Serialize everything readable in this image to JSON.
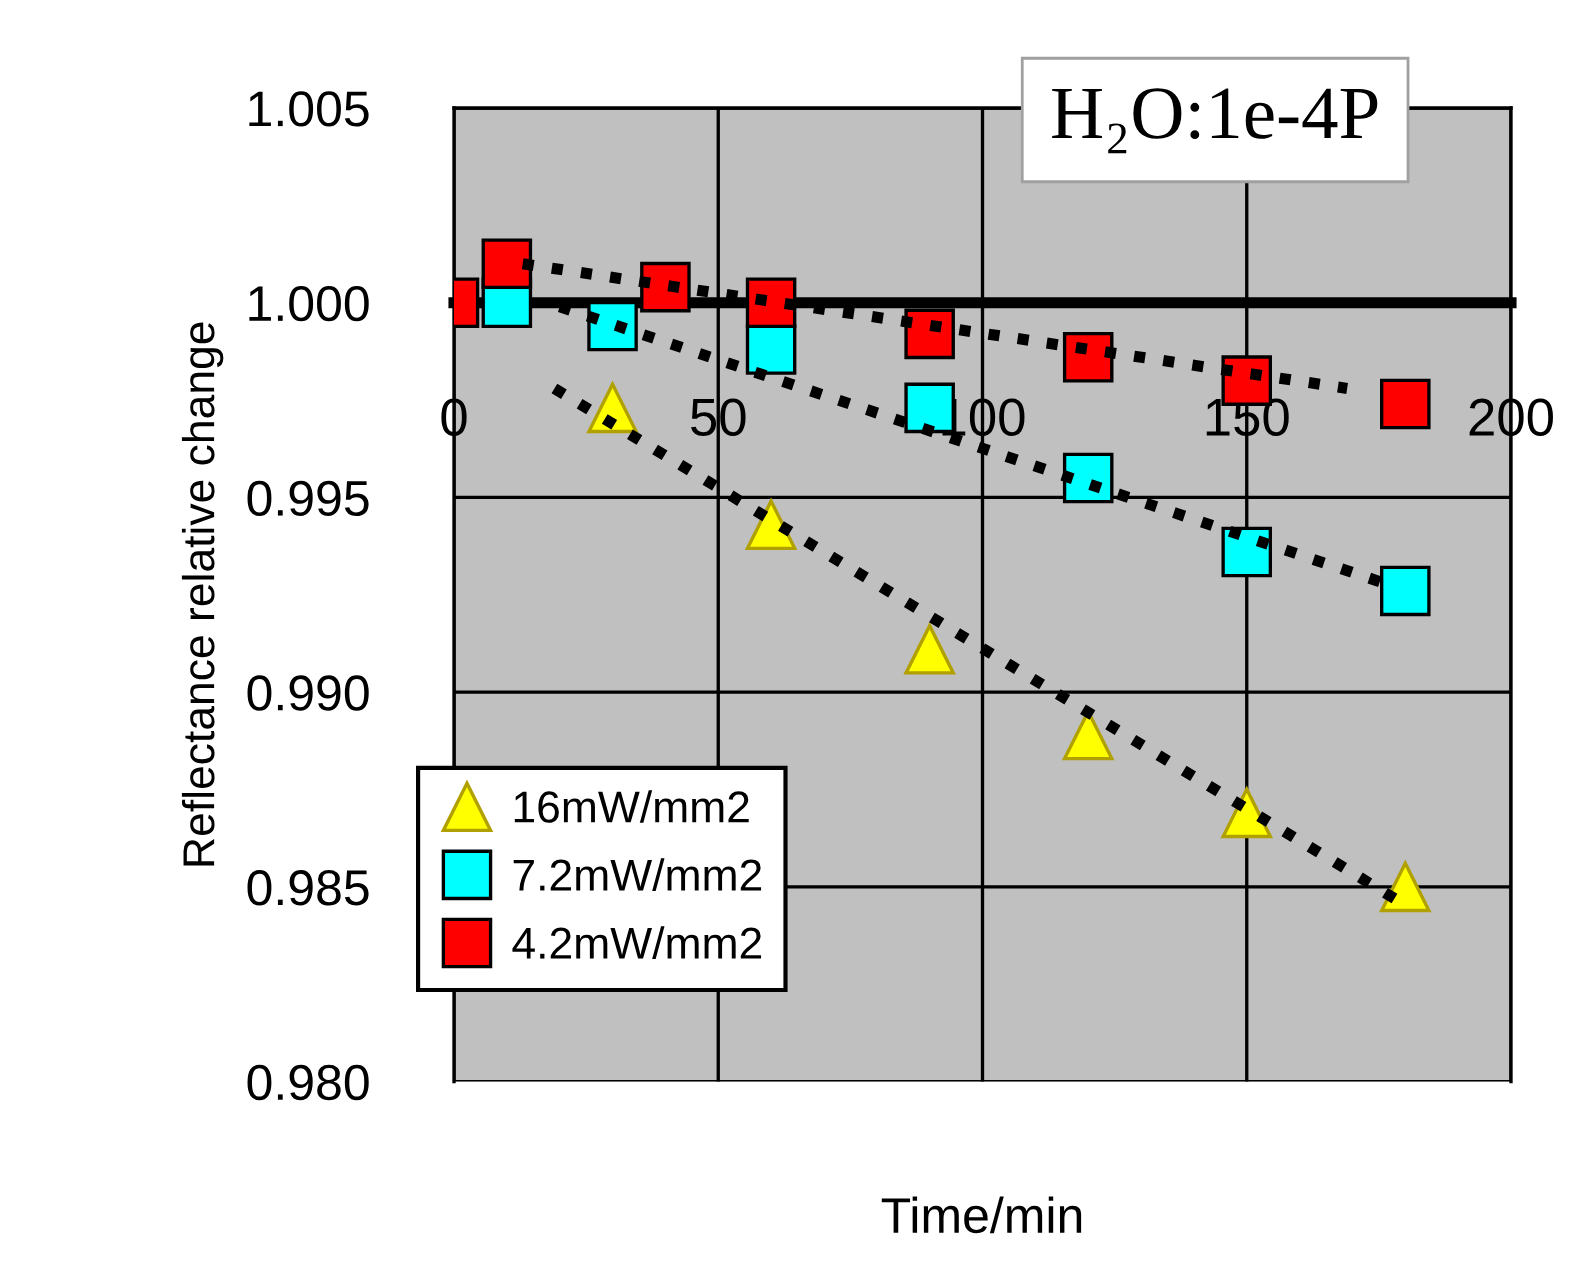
{
  "chart_data": {
    "type": "scatter",
    "xlabel": "Time/min",
    "ylabel": "Reflectance relative change",
    "annotations": [
      "H₂O:1e-4P"
    ],
    "xlim": [
      0,
      200
    ],
    "xticks": [
      0,
      50,
      100,
      150,
      200
    ],
    "ylim": [
      0.98,
      1.005
    ],
    "yticks": [
      {
        "value": 0.98,
        "label": "0.980"
      },
      {
        "value": 0.985,
        "label": "0.985"
      },
      {
        "value": 0.99,
        "label": "0.990"
      },
      {
        "value": 0.995,
        "label": "0.995"
      },
      {
        "value": 1.0,
        "label": "1.000"
      },
      {
        "value": 1.005,
        "label": "1.005"
      }
    ],
    "grid": true,
    "legend": "bottom left",
    "series": [
      {
        "name": "16mW/mm2",
        "color": "#ffff00",
        "marker": "triangle",
        "x": [
          30,
          60,
          90,
          120,
          150,
          180
        ],
        "values": [
          0.9973,
          0.9943,
          0.9911,
          0.9889,
          0.9869,
          0.985
        ]
      },
      {
        "name": "7.2mW/mm2",
        "color": "#00ffff",
        "marker": "square",
        "x": [
          10,
          30,
          60,
          90,
          120,
          150,
          180
        ],
        "values": [
          1.0,
          0.9994,
          0.9988,
          0.9973,
          0.9955,
          0.9936,
          0.9926
        ]
      },
      {
        "name": "4.2mW/mm2",
        "color": "#ff0000",
        "marker": "square",
        "x": [
          0,
          10,
          40,
          60,
          90,
          120,
          150,
          180
        ],
        "values": [
          1.0,
          1.001,
          1.0004,
          1.0,
          0.9992,
          0.9986,
          0.998,
          0.9974
        ]
      },
      {
        "type": "line",
        "color": "#000000",
        "line_style": "dotted",
        "x": [
          19,
          178
        ],
        "values": [
          0.9978,
          0.9847
        ]
      },
      {
        "type": "line",
        "color": "#000000",
        "line_style": "dotted",
        "x": [
          20,
          176
        ],
        "values": [
          0.9999,
          0.9928
        ]
      },
      {
        "type": "line",
        "color": "#000000",
        "line_style": "dotted",
        "x": [
          13,
          169
        ],
        "values": [
          1.001,
          0.9978
        ]
      }
    ]
  }
}
